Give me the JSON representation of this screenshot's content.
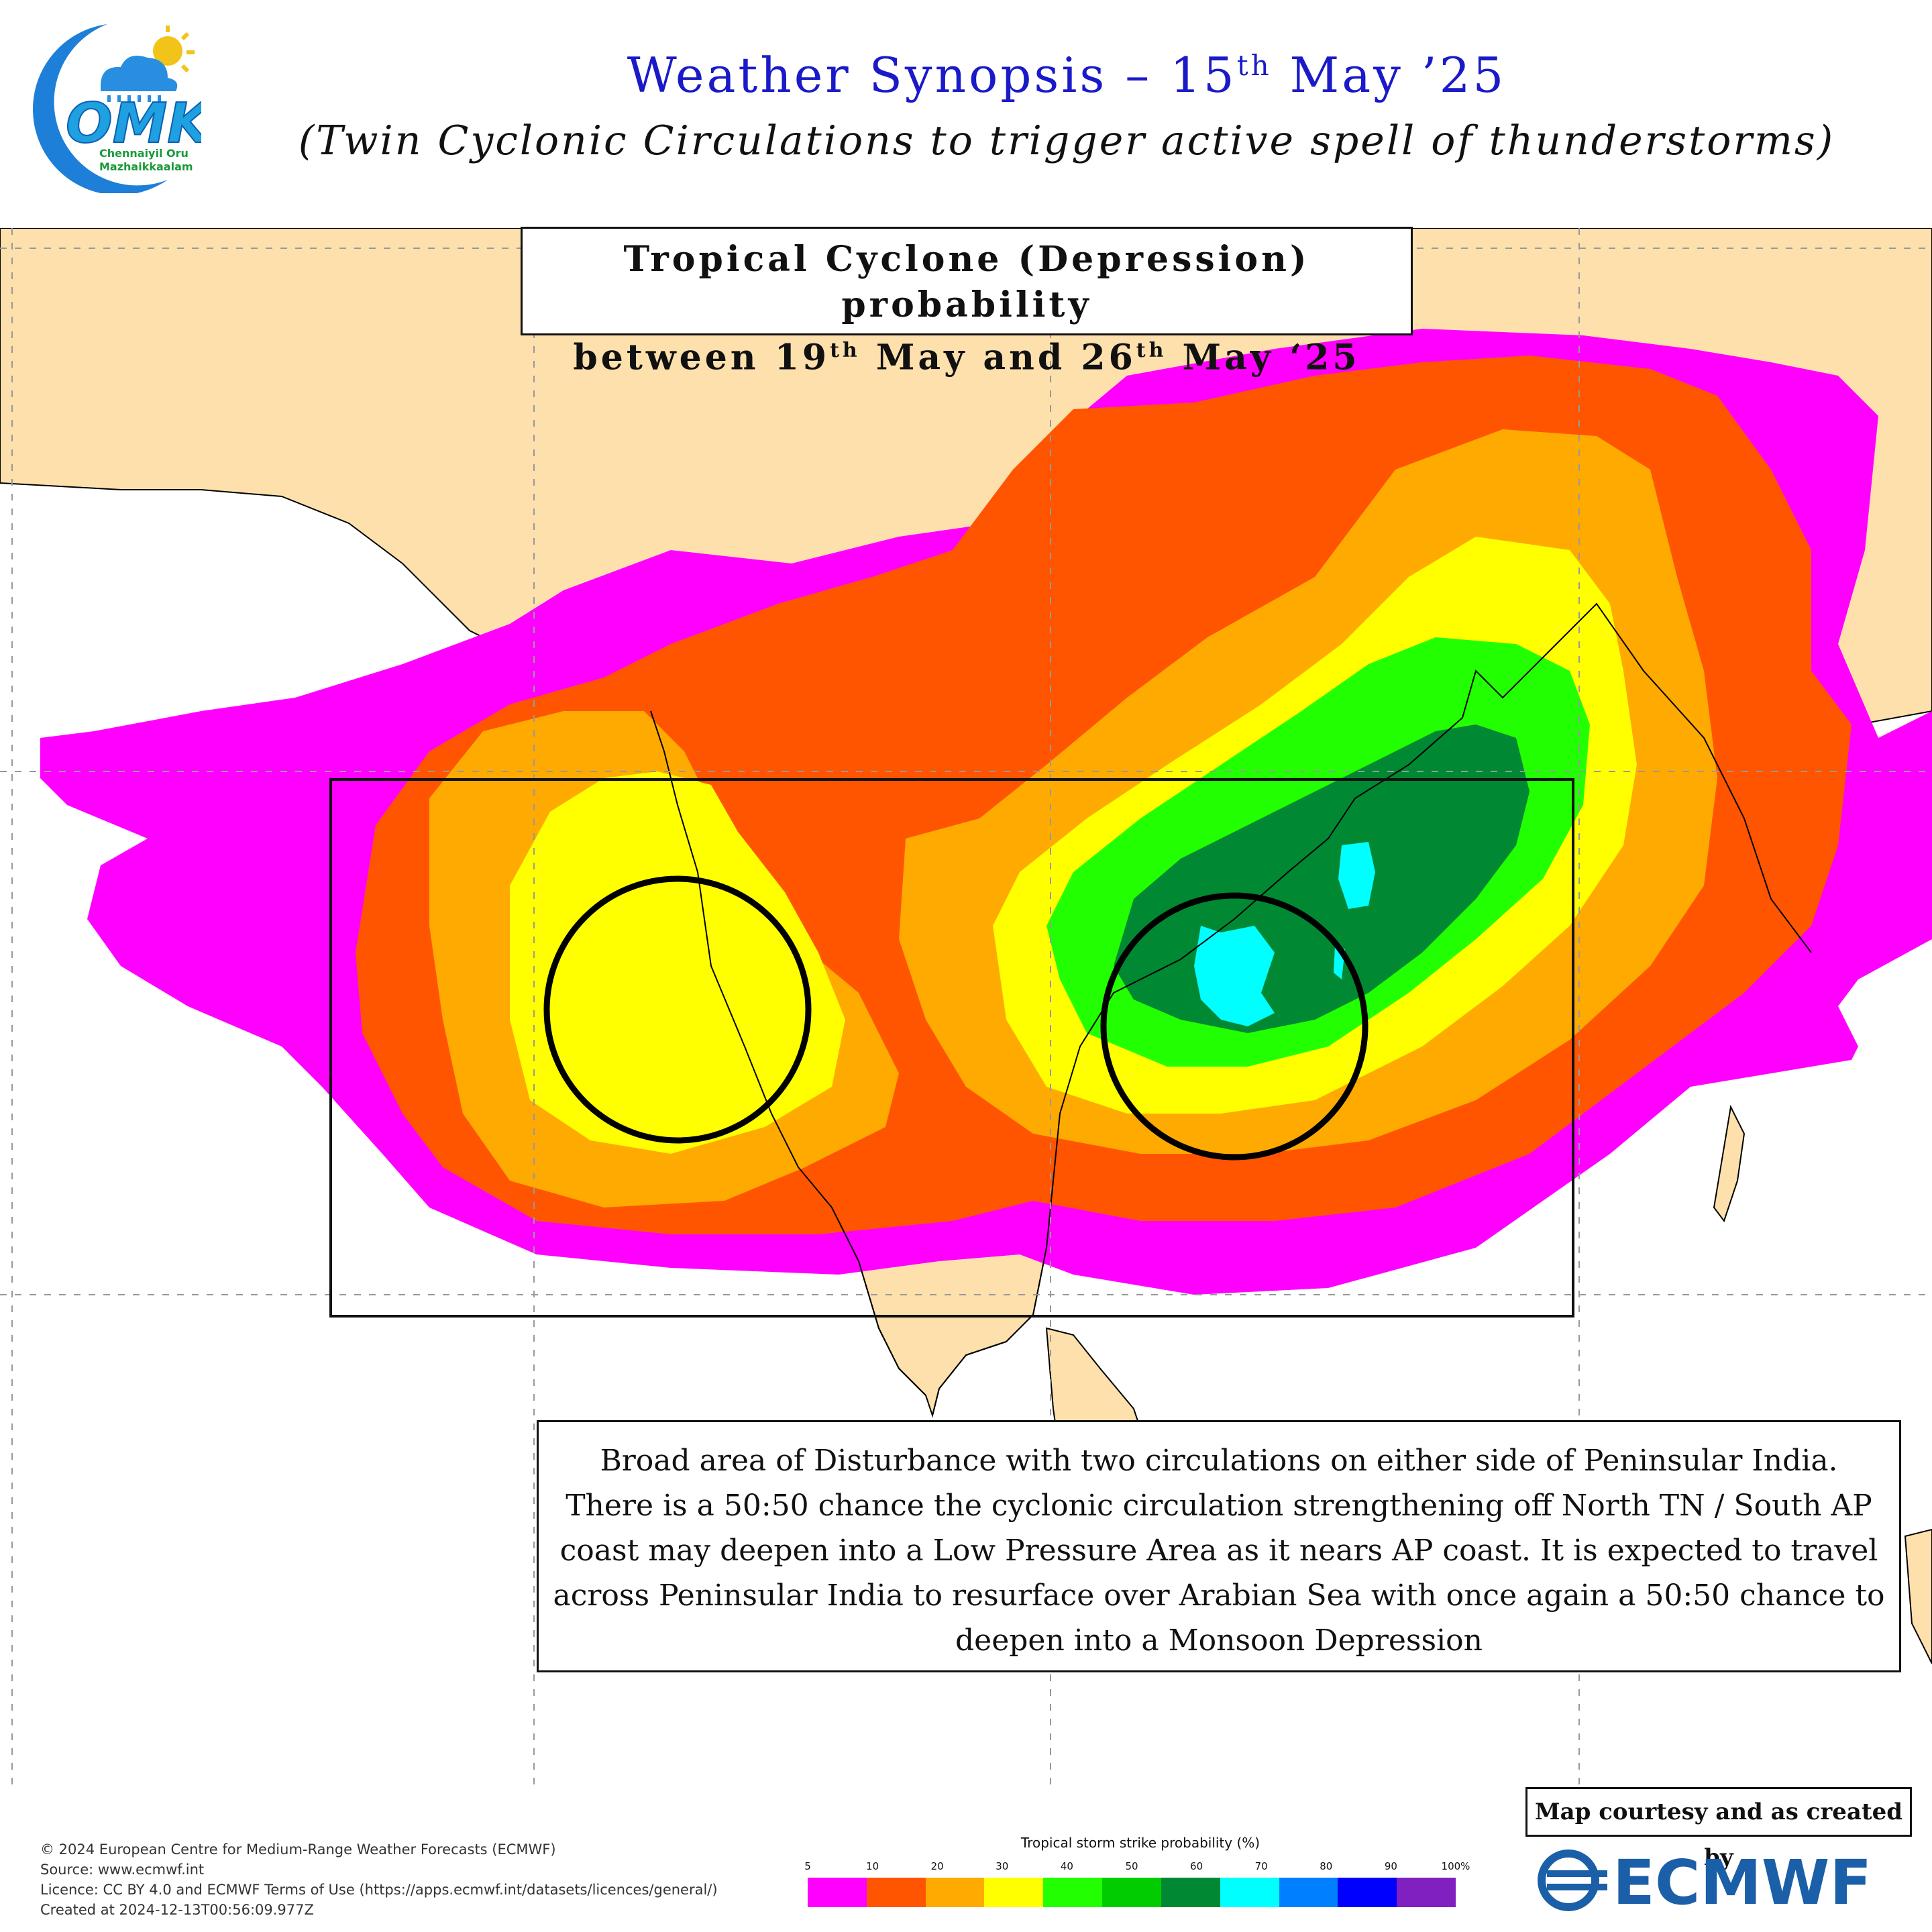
{
  "logo": {
    "text_main": "OMK",
    "text_line1": "Chennaiyil Oru",
    "text_line2": "Mazhaikkaalam",
    "icon": "cloud-sun-rain-icon",
    "colors": {
      "crescent": "#1e7fd8",
      "letters": "#1fa0e0",
      "sun": "#f2c318"
    }
  },
  "header": {
    "title_pre": "Weather Synopsis – 15",
    "title_sup": "th",
    "title_post": " May ’25",
    "subtitle": "(Twin Cyclonic Circulations to trigger active spell of  thunderstorms)"
  },
  "tc_box": {
    "line1": "Tropical Cyclone (Depression) probability",
    "line2_a": "between 19",
    "line2_sup1": "th",
    "line2_b": " May and 26",
    "line2_sup2": "th",
    "line2_c": " May ‘25"
  },
  "description": "Broad area of Disturbance with two circulations on either side of Peninsular India. There is a 50:50 chance the cyclonic circulation strengthening off North TN / South AP coast may deepen into a Low Pressure Area as it nears AP coast. It is expected to travel across Peninsular India to resurface over Arabian Sea with once again a 50:50 chance to deepen into a Monsoon Depression",
  "credits": [
    "© 2024 European Centre for Medium-Range Weather Forecasts (ECMWF)",
    "Source: www.ecmwf.int",
    "Licence: CC BY 4.0 and ECMWF Terms of Use (https://apps.ecmwf.int/datasets/licences/general/)",
    "Created at 2024-12-13T00:56:09.977Z"
  ],
  "colorbar": {
    "title": "Tropical storm strike probability (%)",
    "ticks": [
      "5",
      "10",
      "20",
      "30",
      "40",
      "50",
      "60",
      "70",
      "80",
      "90",
      "100%"
    ],
    "colors": [
      "#ff00ff",
      "#ff5500",
      "#ffaa00",
      "#ffff00",
      "#22ff00",
      "#00cc00",
      "#008833",
      "#00ffff",
      "#0080ff",
      "#0000ff",
      "#8020c0"
    ]
  },
  "courtesy": "Map courtesy and  as created by",
  "ecmwf_logo_text": "ECMWF",
  "map_colors": {
    "land": "#fde0ac",
    "sea": "#ffffff",
    "p5": "#ff00ff",
    "p10": "#ff5500",
    "p20": "#ffaa00",
    "p30": "#ffff00",
    "p40": "#22ff00",
    "p60": "#008833",
    "p70": "#00ffff"
  }
}
